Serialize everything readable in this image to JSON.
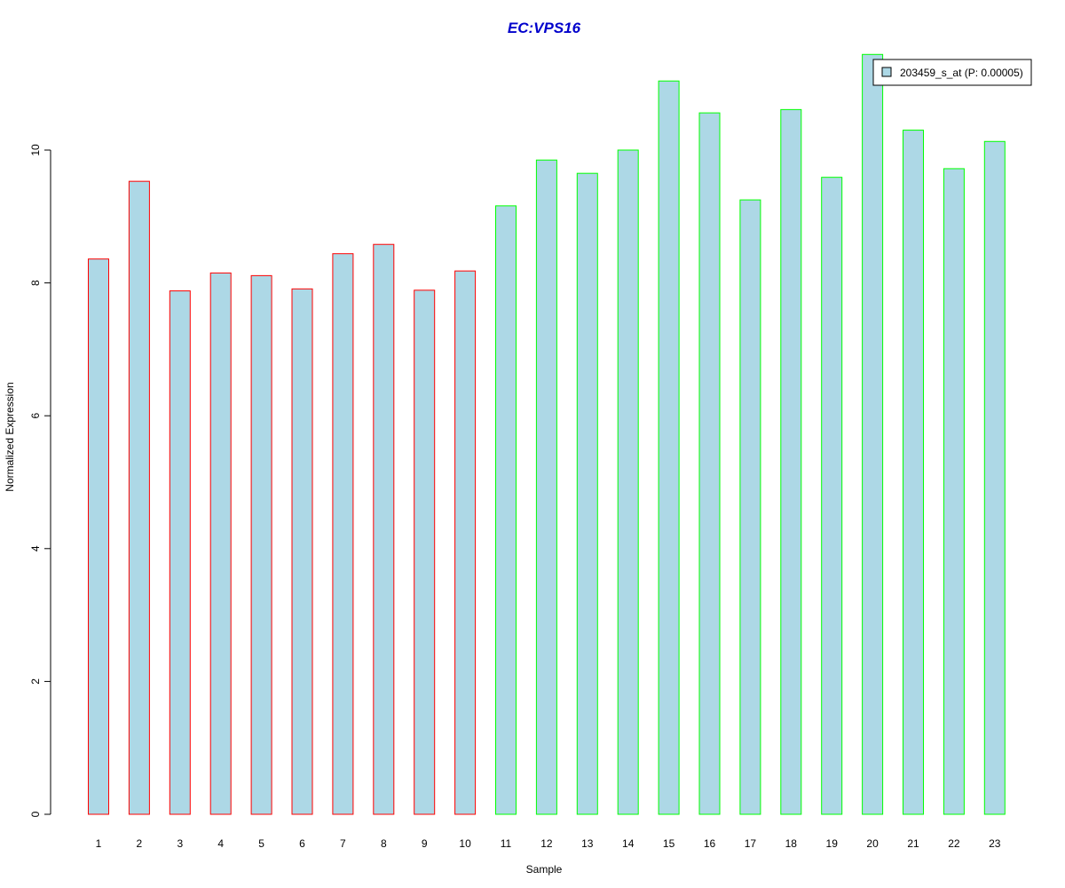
{
  "chart_data": {
    "type": "bar",
    "title": "EC:VPS16",
    "title_color": "#0000CC",
    "xlabel": "Sample",
    "ylabel": "Normalized Expression",
    "categories": [
      "1",
      "2",
      "3",
      "4",
      "5",
      "6",
      "7",
      "8",
      "9",
      "10",
      "11",
      "12",
      "13",
      "14",
      "15",
      "16",
      "17",
      "18",
      "19",
      "20",
      "21",
      "22",
      "23"
    ],
    "values": [
      8.36,
      9.53,
      7.88,
      8.15,
      8.11,
      7.91,
      8.44,
      8.58,
      7.89,
      8.18,
      9.16,
      9.85,
      9.65,
      10.0,
      11.04,
      10.56,
      9.25,
      10.61,
      9.59,
      11.44,
      10.3,
      9.72,
      10.13
    ],
    "series": [
      {
        "name": "203459_s_at (P: 0.00005)",
        "fill": "#ADD8E6"
      }
    ],
    "bar_border_colors": [
      "#FF0000",
      "#FF0000",
      "#FF0000",
      "#FF0000",
      "#FF0000",
      "#FF0000",
      "#FF0000",
      "#FF0000",
      "#FF0000",
      "#FF0000",
      "#00FF00",
      "#00FF00",
      "#00FF00",
      "#00FF00",
      "#00FF00",
      "#00FF00",
      "#00FF00",
      "#00FF00",
      "#00FF00",
      "#00FF00",
      "#00FF00",
      "#00FF00",
      "#00FF00"
    ],
    "ylim": [
      0,
      11.5
    ],
    "yticks": [
      0,
      2,
      4,
      6,
      8,
      10
    ],
    "grid": false,
    "legend_position": "top-right"
  }
}
